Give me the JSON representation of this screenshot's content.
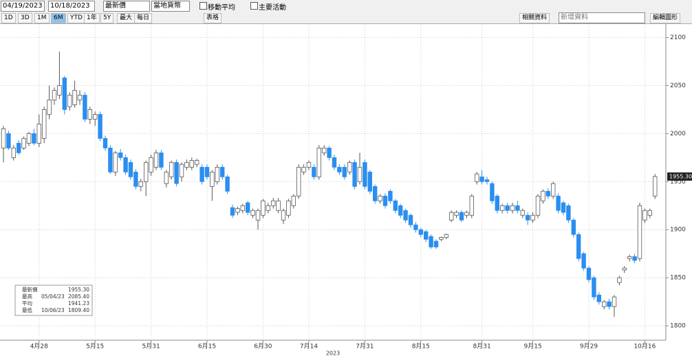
{
  "toolbar": {
    "start_date": "04/19/2023",
    "end_date": "10/18/2023",
    "field": "最新價",
    "currency": "當地貨幣",
    "moving_average": "移動平均",
    "events": "主要活動",
    "periods": [
      "1D",
      "3D",
      "1M",
      "6M",
      "YTD",
      "1年",
      "5Y",
      "最大"
    ],
    "active_period": "6M",
    "frequency": "每日",
    "table": "表格",
    "related": "相關資料",
    "add_data": "新增資料",
    "edit_chart": "編輯圖形"
  },
  "chart_data": {
    "type": "candlestick",
    "x_label": "2023",
    "categories": [
      null,
      null,
      null,
      null,
      null,
      null,
      null,
      "4月28",
      null,
      null,
      null,
      null,
      null,
      null,
      null,
      null,
      null,
      null,
      "5月15",
      null,
      null,
      null,
      null,
      null,
      null,
      null,
      null,
      null,
      null,
      "5月31",
      null,
      null,
      null,
      null,
      null,
      null,
      null,
      null,
      null,
      null,
      "6月15",
      null,
      null,
      null,
      null,
      null,
      null,
      null,
      null,
      null,
      null,
      "6月30",
      null,
      null,
      null,
      null,
      null,
      null,
      null,
      null,
      "7月14",
      null,
      null,
      null,
      null,
      null,
      null,
      null,
      null,
      null,
      null,
      "7月31",
      null,
      null,
      null,
      null,
      null,
      null,
      null,
      null,
      null,
      null,
      "8月15",
      null,
      null,
      null,
      null,
      null,
      null,
      null,
      null,
      null,
      null,
      null,
      "8月31",
      null,
      null,
      null,
      null,
      null,
      null,
      null,
      null,
      null,
      "9月15",
      null,
      null,
      null,
      null,
      null,
      null,
      null,
      null,
      null,
      null,
      "9月29",
      null,
      null,
      null,
      null,
      null,
      null,
      null,
      null,
      null,
      null,
      "10月16",
      null,
      null
    ],
    "open": [
      1985,
      2000,
      1975,
      1990,
      1985,
      1990,
      2000,
      1990,
      1995,
      2020,
      2035,
      2040,
      2058,
      2028,
      2030,
      2035,
      2040,
      2015,
      2015,
      2020,
      1995,
      1985,
      1960,
      1980,
      1975,
      1970,
      1960,
      1945,
      1950,
      1960,
      1965,
      1980,
      1948,
      1955,
      1970,
      1955,
      1965,
      1965,
      1968,
      1965,
      1965,
      1945,
      1950,
      1965,
      1955,
      1923,
      1918,
      1920,
      1928,
      1915,
      1910,
      1915,
      1920,
      1925,
      1920,
      1910,
      1915,
      1925,
      1935,
      1960,
      1965,
      1965,
      1955,
      1980,
      1985,
      1975,
      1965,
      1965,
      1960,
      1970,
      1950,
      1970,
      1960,
      1945,
      1930,
      1935,
      1940,
      1930,
      1925,
      1920,
      1915,
      1905,
      1900,
      1898,
      1893,
      1888,
      1890,
      1892,
      1910,
      1915,
      1918,
      1915,
      1915,
      1950,
      1955,
      1952,
      1948,
      1935,
      1920,
      1925,
      1920,
      1925,
      1915,
      1915,
      1910,
      1915,
      1930,
      1940,
      1935,
      1935,
      1928,
      1925,
      1910,
      1895,
      1875,
      1860,
      1850,
      1832,
      1820,
      1825,
      1820,
      1845,
      1858,
      1870,
      1872,
      1870,
      1910,
      1915,
      1935
    ],
    "high": [
      2008,
      2003,
      1988,
      1993,
      1997,
      2002,
      2005,
      2020,
      2028,
      2050,
      2048,
      2085.4,
      2060,
      2043,
      2055,
      2045,
      2043,
      2028,
      2023,
      2023,
      1998,
      1988,
      1982,
      1984,
      1978,
      1973,
      1963,
      1953,
      1972,
      1978,
      1983,
      1983,
      1962,
      1972,
      1973,
      1970,
      1973,
      1975,
      1974,
      1968,
      1968,
      1962,
      1968,
      1968,
      1957,
      1926,
      1924,
      1927,
      1930,
      1922,
      1922,
      1932,
      1928,
      1933,
      1933,
      1922,
      1932,
      1937,
      1968,
      1968,
      1972,
      1968,
      1988,
      1988,
      1987,
      1978,
      1968,
      1968,
      1972,
      1973,
      1980,
      1973,
      1962,
      1947,
      1937,
      1938,
      1942,
      1932,
      1927,
      1922,
      1917,
      1908,
      1902,
      1900,
      1895,
      1890,
      1893,
      1896,
      1920,
      1920,
      1920,
      1920,
      1937,
      1960,
      1962,
      1955,
      1950,
      1937,
      1927,
      1928,
      1928,
      1930,
      1922,
      1918,
      1918,
      1937,
      1942,
      1943,
      1950,
      1938,
      1930,
      1927,
      1912,
      1897,
      1877,
      1862,
      1852,
      1835,
      1827,
      1828,
      1832,
      1852,
      1862,
      1874,
      1875,
      1928,
      1922,
      1922,
      1958
    ],
    "low": [
      1970,
      1983,
      1972,
      1978,
      1983,
      1987,
      1988,
      1986,
      1990,
      2015,
      2030,
      2036,
      2020,
      2024,
      2027,
      2030,
      2012,
      2010,
      2008,
      1992,
      1982,
      1958,
      1956,
      1972,
      1957,
      1952,
      1942,
      1940,
      1935,
      1956,
      1962,
      1962,
      1944,
      1952,
      1945,
      1950,
      1962,
      1962,
      1965,
      1947,
      1952,
      1930,
      1947,
      1952,
      1937,
      1912,
      1915,
      1917,
      1915,
      1912,
      1900,
      1912,
      1917,
      1922,
      1917,
      1906,
      1912,
      1922,
      1932,
      1957,
      1962,
      1952,
      1952,
      1977,
      1972,
      1962,
      1957,
      1952,
      1957,
      1942,
      1947,
      1942,
      1937,
      1927,
      1927,
      1922,
      1927,
      1917,
      1912,
      1907,
      1902,
      1897,
      1892,
      1887,
      1880,
      1880,
      1888,
      1890,
      1908,
      1912,
      1908,
      1912,
      1912,
      1947,
      1947,
      1947,
      1927,
      1917,
      1917,
      1917,
      1917,
      1917,
      1912,
      1905,
      1907,
      1912,
      1927,
      1932,
      1932,
      1917,
      1915,
      1907,
      1892,
      1867,
      1857,
      1845,
      1827,
      1822,
      1817,
      1817,
      1809.4,
      1842,
      1855,
      1867,
      1865,
      1867,
      1907,
      1912,
      1932
    ],
    "close": [
      2005,
      1985,
      1985,
      1980,
      1995,
      2000,
      1990,
      2010,
      2025,
      2035,
      2045,
      2050,
      2025,
      2040,
      2045,
      2040,
      2015,
      2025,
      2020,
      1995,
      1985,
      1960,
      1980,
      1975,
      1960,
      1955,
      1945,
      1950,
      1970,
      1975,
      1980,
      1965,
      1960,
      1970,
      1948,
      1968,
      1970,
      1972,
      1972,
      1950,
      1955,
      1960,
      1965,
      1955,
      1940,
      1915,
      1922,
      1925,
      1918,
      1920,
      1920,
      1930,
      1925,
      1930,
      1930,
      1920,
      1930,
      1935,
      1965,
      1965,
      1970,
      1955,
      1985,
      1985,
      1975,
      1965,
      1960,
      1955,
      1970,
      1945,
      1965,
      1945,
      1940,
      1930,
      1935,
      1925,
      1930,
      1920,
      1915,
      1910,
      1905,
      1900,
      1895,
      1890,
      1882,
      1882,
      1892,
      1895,
      1918,
      1918,
      1910,
      1918,
      1935,
      1958,
      1950,
      1950,
      1930,
      1920,
      1925,
      1920,
      1925,
      1920,
      1920,
      1910,
      1915,
      1935,
      1940,
      1935,
      1948,
      1920,
      1918,
      1910,
      1895,
      1870,
      1860,
      1848,
      1830,
      1825,
      1825,
      1820,
      1830,
      1850,
      1860,
      1872,
      1868,
      1925,
      1920,
      1920,
      1955.3
    ],
    "up_color": "#ffffff",
    "down_color": "#2b8ef0",
    "ylim": [
      1785,
      2114
    ],
    "yticks": [
      1800,
      1850,
      1900,
      1950,
      2000,
      2050,
      2100
    ],
    "grid": true,
    "last_label": "1955.30",
    "stats": [
      {
        "name": "最新價",
        "date": "",
        "value": "1955.30"
      },
      {
        "name": "最高",
        "date": "05/04/23",
        "value": "2085.40"
      },
      {
        "name": "平均",
        "date": "",
        "value": "1941.23"
      },
      {
        "name": "最低",
        "date": "10/06/23",
        "value": "1809.40"
      }
    ]
  }
}
